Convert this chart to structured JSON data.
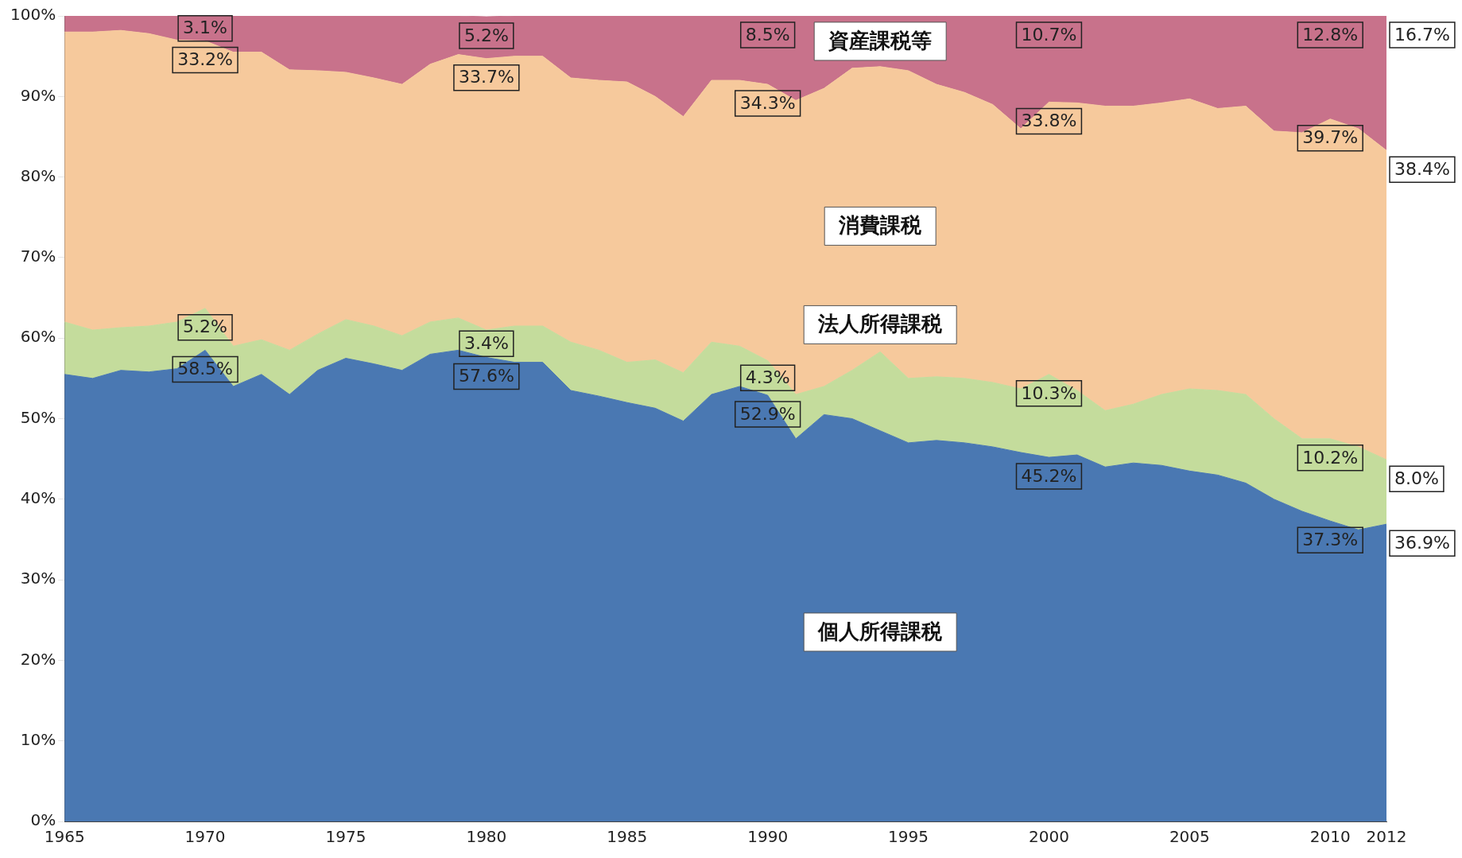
{
  "chart_data": {
    "type": "area",
    "stacked": true,
    "legend": false,
    "grid": false,
    "x": [
      1965,
      1966,
      1967,
      1968,
      1969,
      1970,
      1971,
      1972,
      1973,
      1974,
      1975,
      1976,
      1977,
      1978,
      1979,
      1980,
      1981,
      1982,
      1983,
      1984,
      1985,
      1986,
      1987,
      1988,
      1989,
      1990,
      1991,
      1992,
      1993,
      1994,
      1995,
      1996,
      1997,
      1998,
      1999,
      2000,
      2001,
      2002,
      2003,
      2004,
      2005,
      2006,
      2007,
      2008,
      2009,
      2010,
      2011,
      2012
    ],
    "xlim": [
      1965,
      2012
    ],
    "xticks": [
      1965,
      1970,
      1975,
      1980,
      1985,
      1990,
      1995,
      2000,
      2005,
      2010,
      2012
    ],
    "ylim": [
      0,
      100
    ],
    "yticks": [
      {
        "value": 0,
        "label": "0%"
      },
      {
        "value": 10,
        "label": "10%"
      },
      {
        "value": 20,
        "label": "20%"
      },
      {
        "value": 30,
        "label": "30%"
      },
      {
        "value": 40,
        "label": "40%"
      },
      {
        "value": 50,
        "label": "50%"
      },
      {
        "value": 60,
        "label": "60%"
      },
      {
        "value": 70,
        "label": "70%"
      },
      {
        "value": 80,
        "label": "80%"
      },
      {
        "value": 90,
        "label": "90%"
      },
      {
        "value": 100,
        "label": "100%"
      }
    ],
    "series": [
      {
        "name": "個人所得課税",
        "color": "#4a78b2",
        "values": [
          55.5,
          55,
          56,
          55.8,
          56.2,
          58.5,
          54,
          55.5,
          53,
          56,
          57.5,
          56.8,
          56,
          58,
          58.5,
          57.6,
          57,
          57,
          53.5,
          52.8,
          52,
          51.3,
          49.7,
          53,
          54,
          52.9,
          47.5,
          50.5,
          50,
          48.5,
          47,
          47.3,
          47,
          46.5,
          45.8,
          45.2,
          45.5,
          44,
          44.5,
          44.2,
          43.5,
          43,
          42,
          40,
          38.5,
          37.3,
          36.2,
          36.9
        ],
        "value_labels": [
          null,
          null,
          null,
          null,
          null,
          "58.5%",
          null,
          null,
          null,
          null,
          null,
          null,
          null,
          null,
          null,
          "57.6%",
          null,
          null,
          null,
          null,
          null,
          null,
          null,
          null,
          null,
          "52.9%",
          null,
          null,
          null,
          null,
          null,
          null,
          null,
          null,
          null,
          "45.2%",
          null,
          null,
          null,
          null,
          null,
          null,
          null,
          null,
          null,
          "37.3%",
          null,
          "36.9%"
        ]
      },
      {
        "name": "法人所得課税",
        "color": "#c4dc9c",
        "values": [
          6.5,
          6,
          5.3,
          5.7,
          5.8,
          5.2,
          5,
          4.3,
          5.5,
          4.5,
          4.8,
          4.7,
          4.3,
          4,
          4,
          3.4,
          4.5,
          4.5,
          6,
          5.7,
          5,
          6,
          6,
          6.5,
          5,
          4.3,
          5.5,
          3.5,
          6,
          9.8,
          8,
          7.9,
          8,
          8,
          7.9,
          10.3,
          8,
          7,
          7.3,
          8.8,
          10.2,
          10.5,
          11,
          10,
          9,
          10.2,
          10.3,
          8.0
        ],
        "value_labels": [
          null,
          null,
          null,
          null,
          null,
          "5.2%",
          null,
          null,
          null,
          null,
          null,
          null,
          null,
          null,
          null,
          "3.4%",
          null,
          null,
          null,
          null,
          null,
          null,
          null,
          null,
          null,
          "4.3%",
          null,
          null,
          null,
          null,
          null,
          null,
          null,
          null,
          null,
          "10.3%",
          null,
          null,
          null,
          null,
          null,
          null,
          null,
          null,
          null,
          "10.2%",
          null,
          "8.0%"
        ]
      },
      {
        "name": "消費課税",
        "color": "#f6c99c",
        "values": [
          36,
          37,
          36.9,
          36.3,
          35,
          33.2,
          36.5,
          35.7,
          34.8,
          32.7,
          30.7,
          30.8,
          31.2,
          32,
          32.7,
          33.7,
          33.5,
          33.5,
          32.8,
          33.5,
          34.8,
          32.7,
          31.8,
          32.5,
          33,
          34.3,
          36.5,
          37,
          37.5,
          35.4,
          38.2,
          36.3,
          35.5,
          34.5,
          32.3,
          33.8,
          35.7,
          37.8,
          37,
          36.2,
          36,
          35,
          35.8,
          35.7,
          38,
          39.7,
          39.5,
          38.4
        ],
        "value_labels": [
          null,
          null,
          null,
          null,
          null,
          "33.2%",
          null,
          null,
          null,
          null,
          null,
          null,
          null,
          null,
          null,
          "33.7%",
          null,
          null,
          null,
          null,
          null,
          null,
          null,
          null,
          null,
          "34.3%",
          null,
          null,
          null,
          null,
          null,
          null,
          null,
          null,
          null,
          "33.8%",
          null,
          null,
          null,
          null,
          null,
          null,
          null,
          null,
          null,
          "39.7%",
          null,
          "38.4%"
        ]
      },
      {
        "name": "資産課税等",
        "color": "#c8728b",
        "values": [
          2,
          2,
          1.8,
          2.2,
          3,
          3.1,
          4.5,
          4.5,
          6.7,
          6.8,
          7,
          7.7,
          8.5,
          6,
          4.8,
          5.2,
          5,
          5,
          7.7,
          8,
          8.2,
          10,
          12.5,
          8,
          8,
          8.5,
          10.5,
          9,
          6.5,
          6.3,
          6.8,
          8.5,
          9.5,
          11,
          14,
          10.7,
          10.8,
          11.2,
          11.2,
          10.8,
          10.3,
          11.5,
          11.2,
          14.3,
          14.5,
          12.8,
          14,
          16.7
        ],
        "value_labels": [
          null,
          null,
          null,
          null,
          null,
          "3.1%",
          null,
          null,
          null,
          null,
          null,
          null,
          null,
          null,
          null,
          "5.2%",
          null,
          null,
          null,
          null,
          null,
          null,
          null,
          null,
          null,
          "8.5%",
          null,
          null,
          null,
          null,
          null,
          null,
          null,
          null,
          null,
          "10.7%",
          null,
          null,
          null,
          null,
          null,
          null,
          null,
          null,
          null,
          "12.8%",
          null,
          "16.7%"
        ]
      }
    ]
  }
}
